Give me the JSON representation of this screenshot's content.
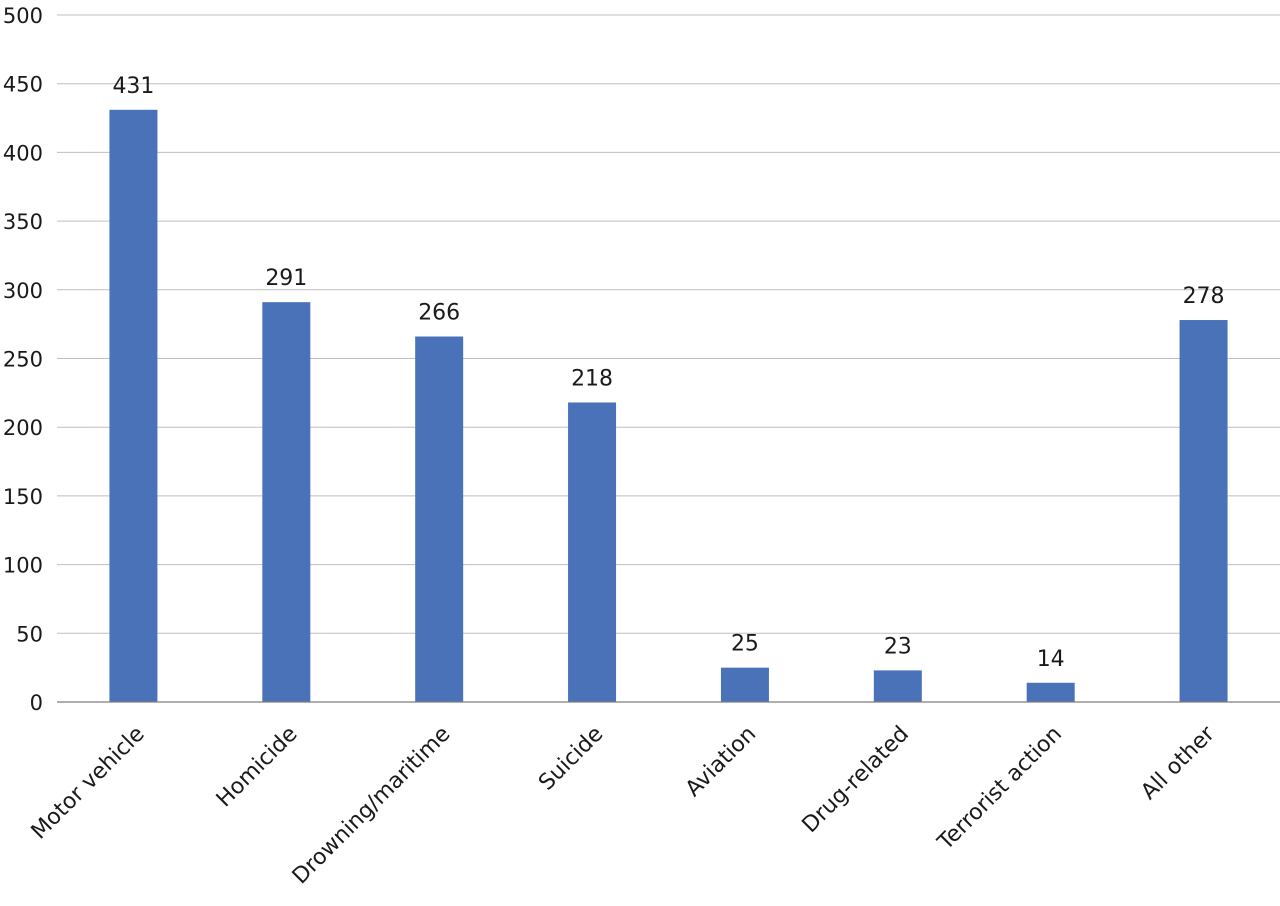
{
  "chart_data": {
    "type": "bar",
    "categories": [
      "Motor vehicle",
      "Homicide",
      "Drowning/maritime",
      "Suicide",
      "Aviation",
      "Drug-related",
      "Terrorist action",
      "All other"
    ],
    "values": [
      431,
      291,
      266,
      218,
      25,
      23,
      14,
      278
    ],
    "data_labels": [
      "431",
      "291",
      "266",
      "218",
      "25",
      "23",
      "14",
      "278"
    ],
    "ylim": [
      0,
      500
    ],
    "yticks": [
      0,
      50,
      100,
      150,
      200,
      250,
      300,
      350,
      400,
      450,
      500
    ],
    "ytick_labels": [
      "0",
      "50",
      "100",
      "150",
      "200",
      "250",
      "300",
      "350",
      "400",
      "450",
      "500"
    ],
    "grid": true,
    "legend": false,
    "bar_color": "#4a72b8",
    "grid_color": "#bfbfbf"
  }
}
